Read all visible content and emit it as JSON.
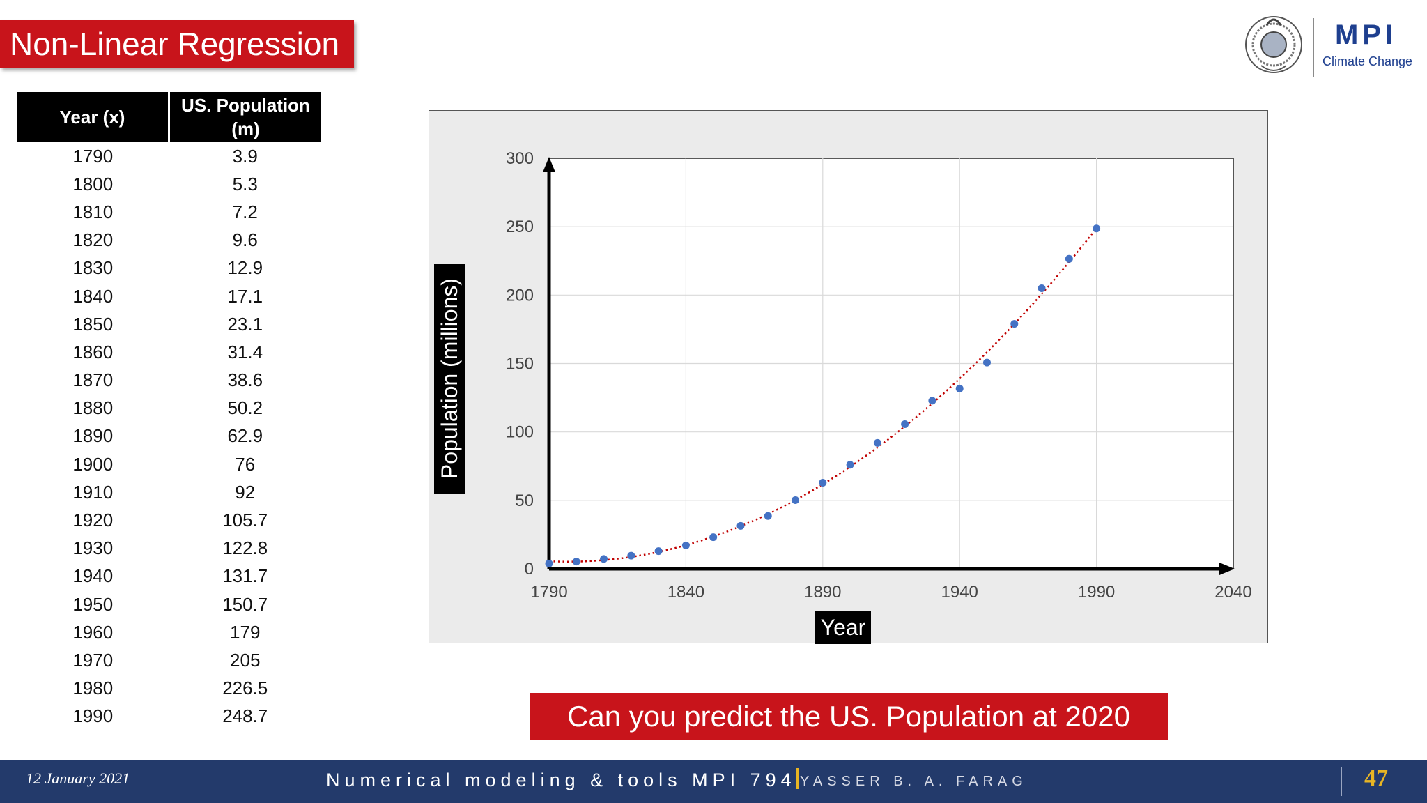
{
  "slide": {
    "title": "Non-Linear Regression",
    "question": "Can you predict the US. Population at 2020"
  },
  "logo": {
    "name": "MPI",
    "subtitle": "Climate Change",
    "icon": "emblem-icon"
  },
  "table": {
    "headers": [
      "Year (x)",
      "US. Population (m)"
    ],
    "rows": [
      [
        "1790",
        "3.9"
      ],
      [
        "1800",
        "5.3"
      ],
      [
        "1810",
        "7.2"
      ],
      [
        "1820",
        "9.6"
      ],
      [
        "1830",
        "12.9"
      ],
      [
        "1840",
        "17.1"
      ],
      [
        "1850",
        "23.1"
      ],
      [
        "1860",
        "31.4"
      ],
      [
        "1870",
        "38.6"
      ],
      [
        "1880",
        "50.2"
      ],
      [
        "1890",
        "62.9"
      ],
      [
        "1900",
        "76"
      ],
      [
        "1910",
        "92"
      ],
      [
        "1920",
        "105.7"
      ],
      [
        "1930",
        "122.8"
      ],
      [
        "1940",
        "131.7"
      ],
      [
        "1950",
        "150.7"
      ],
      [
        "1960",
        "179"
      ],
      [
        "1970",
        "205"
      ],
      [
        "1980",
        "226.5"
      ],
      [
        "1990",
        "248.7"
      ]
    ]
  },
  "chart_data": {
    "type": "scatter",
    "title": "",
    "xlabel": "Year",
    "ylabel": "Population (millions)",
    "xlim": [
      1790,
      2040
    ],
    "ylim": [
      0,
      300
    ],
    "xticks": [
      1790,
      1840,
      1890,
      1940,
      1990,
      2040
    ],
    "yticks": [
      0,
      50,
      100,
      150,
      200,
      250,
      300
    ],
    "grid": true,
    "point_color": "#4472c4",
    "trendline_color": "#c00000",
    "trendline": "dotted polynomial fit",
    "x": [
      1790,
      1800,
      1810,
      1820,
      1830,
      1840,
      1850,
      1860,
      1870,
      1880,
      1890,
      1900,
      1910,
      1920,
      1930,
      1940,
      1950,
      1960,
      1970,
      1980,
      1990
    ],
    "y": [
      3.9,
      5.3,
      7.2,
      9.6,
      12.9,
      17.1,
      23.1,
      31.4,
      38.6,
      50.2,
      62.9,
      76,
      92,
      105.7,
      122.8,
      131.7,
      150.7,
      179,
      205,
      226.5,
      248.7
    ]
  },
  "footer": {
    "date": "12 January 2021",
    "course": "Numerical modeling & tools MPI 794",
    "author": "YASSER B. A. FARAG",
    "page": "47"
  }
}
